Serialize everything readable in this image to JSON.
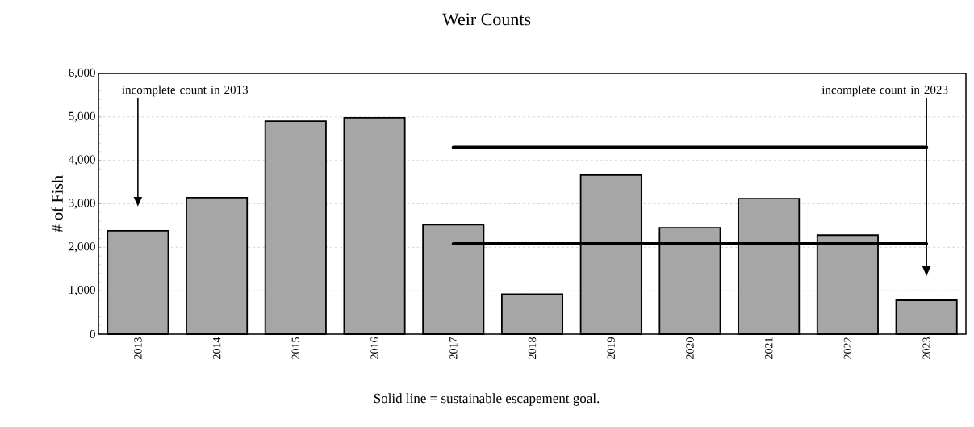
{
  "chart_data": {
    "type": "bar",
    "title": "Weir Counts",
    "ylabel": "# of Fish",
    "categories": [
      "2013",
      "2014",
      "2015",
      "2016",
      "2017",
      "2018",
      "2019",
      "2020",
      "2021",
      "2022",
      "2023"
    ],
    "series": [
      {
        "color": "#a6a6a6",
        "values": [
          2380,
          3140,
          4900,
          4980,
          2520,
          920,
          3660,
          2450,
          3120,
          2280,
          780
        ]
      },
      {
        "type": "line",
        "color": "#000000",
        "values": [
          null,
          null,
          null,
          null,
          4300,
          4300,
          4300,
          4300,
          4300,
          4300,
          4300
        ]
      },
      {
        "type": "line",
        "color": "#000000",
        "values": [
          null,
          null,
          null,
          null,
          2080,
          2080,
          2080,
          2080,
          2080,
          2080,
          2080
        ]
      }
    ],
    "ylim": [
      0,
      6000
    ],
    "yticks": [
      {
        "value": 0,
        "label": "0"
      },
      {
        "value": 1000,
        "label": "1,000"
      },
      {
        "value": 2000,
        "label": "2,000"
      },
      {
        "value": 3000,
        "label": "3,000"
      },
      {
        "value": 4000,
        "label": "4,000"
      },
      {
        "value": 5000,
        "label": "5,000"
      },
      {
        "value": 6000,
        "label": "6,000"
      }
    ],
    "grid": "y",
    "annotations": [
      "incomplete count in 2013",
      "incomplete count in 2023",
      "Solid line = sustainable escapement  goal."
    ]
  }
}
